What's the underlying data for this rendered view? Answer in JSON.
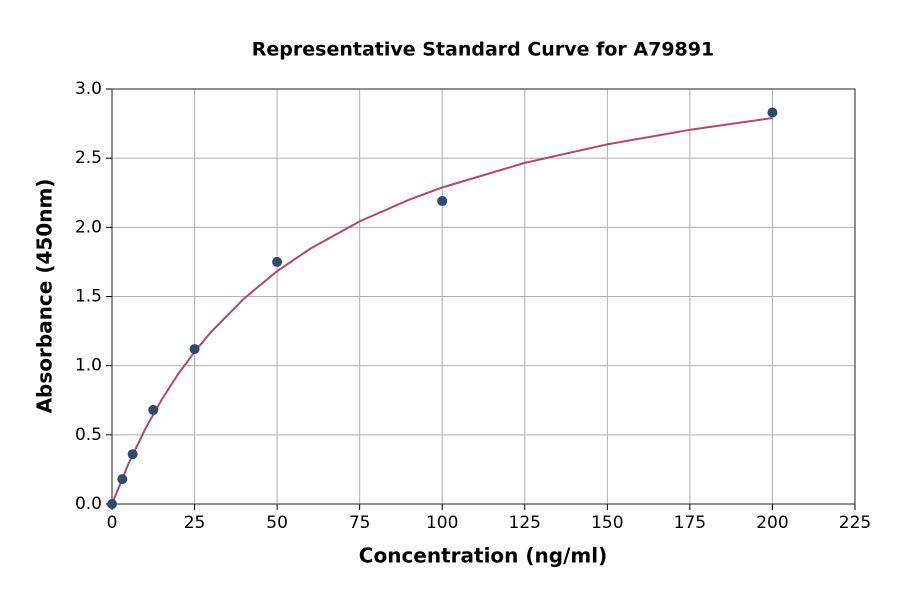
{
  "chart_data": {
    "type": "scatter",
    "title": "Representative Standard Curve for A79891",
    "x_label": "Concentration (ng/ml)",
    "y_label": "Absorbance (450nm)",
    "series": [
      {
        "x": [
          0,
          3.125,
          6.25,
          12.5,
          25,
          50,
          100,
          200
        ],
        "values": [
          0,
          0.18,
          0.36,
          0.68,
          1.12,
          1.75,
          2.19,
          2.83
        ],
        "color": "#2e4a6e",
        "kind": "points"
      },
      {
        "x": [
          0,
          5,
          10,
          15,
          20,
          25,
          30,
          40,
          50,
          60,
          75,
          90,
          100,
          125,
          150,
          175,
          200
        ],
        "values": [
          0,
          0.292,
          0.54,
          0.753,
          0.938,
          1.1,
          1.244,
          1.486,
          1.683,
          1.845,
          2.043,
          2.2,
          2.288,
          2.466,
          2.6,
          2.705,
          2.79
        ],
        "color": "#b5476b",
        "kind": "line"
      }
    ],
    "xlim": [
      0,
      225
    ],
    "xticks": [
      0,
      25,
      50,
      75,
      100,
      125,
      150,
      175,
      200,
      225
    ],
    "ylim": [
      0,
      3
    ],
    "yticks": [
      {
        "value": 0,
        "label": "0.0"
      },
      0.5,
      {
        "value": 1,
        "label": "1.0"
      },
      1.5,
      {
        "value": 2,
        "label": "2.0"
      },
      2.5,
      {
        "value": 3,
        "label": "3.0"
      }
    ],
    "grid": true
  }
}
